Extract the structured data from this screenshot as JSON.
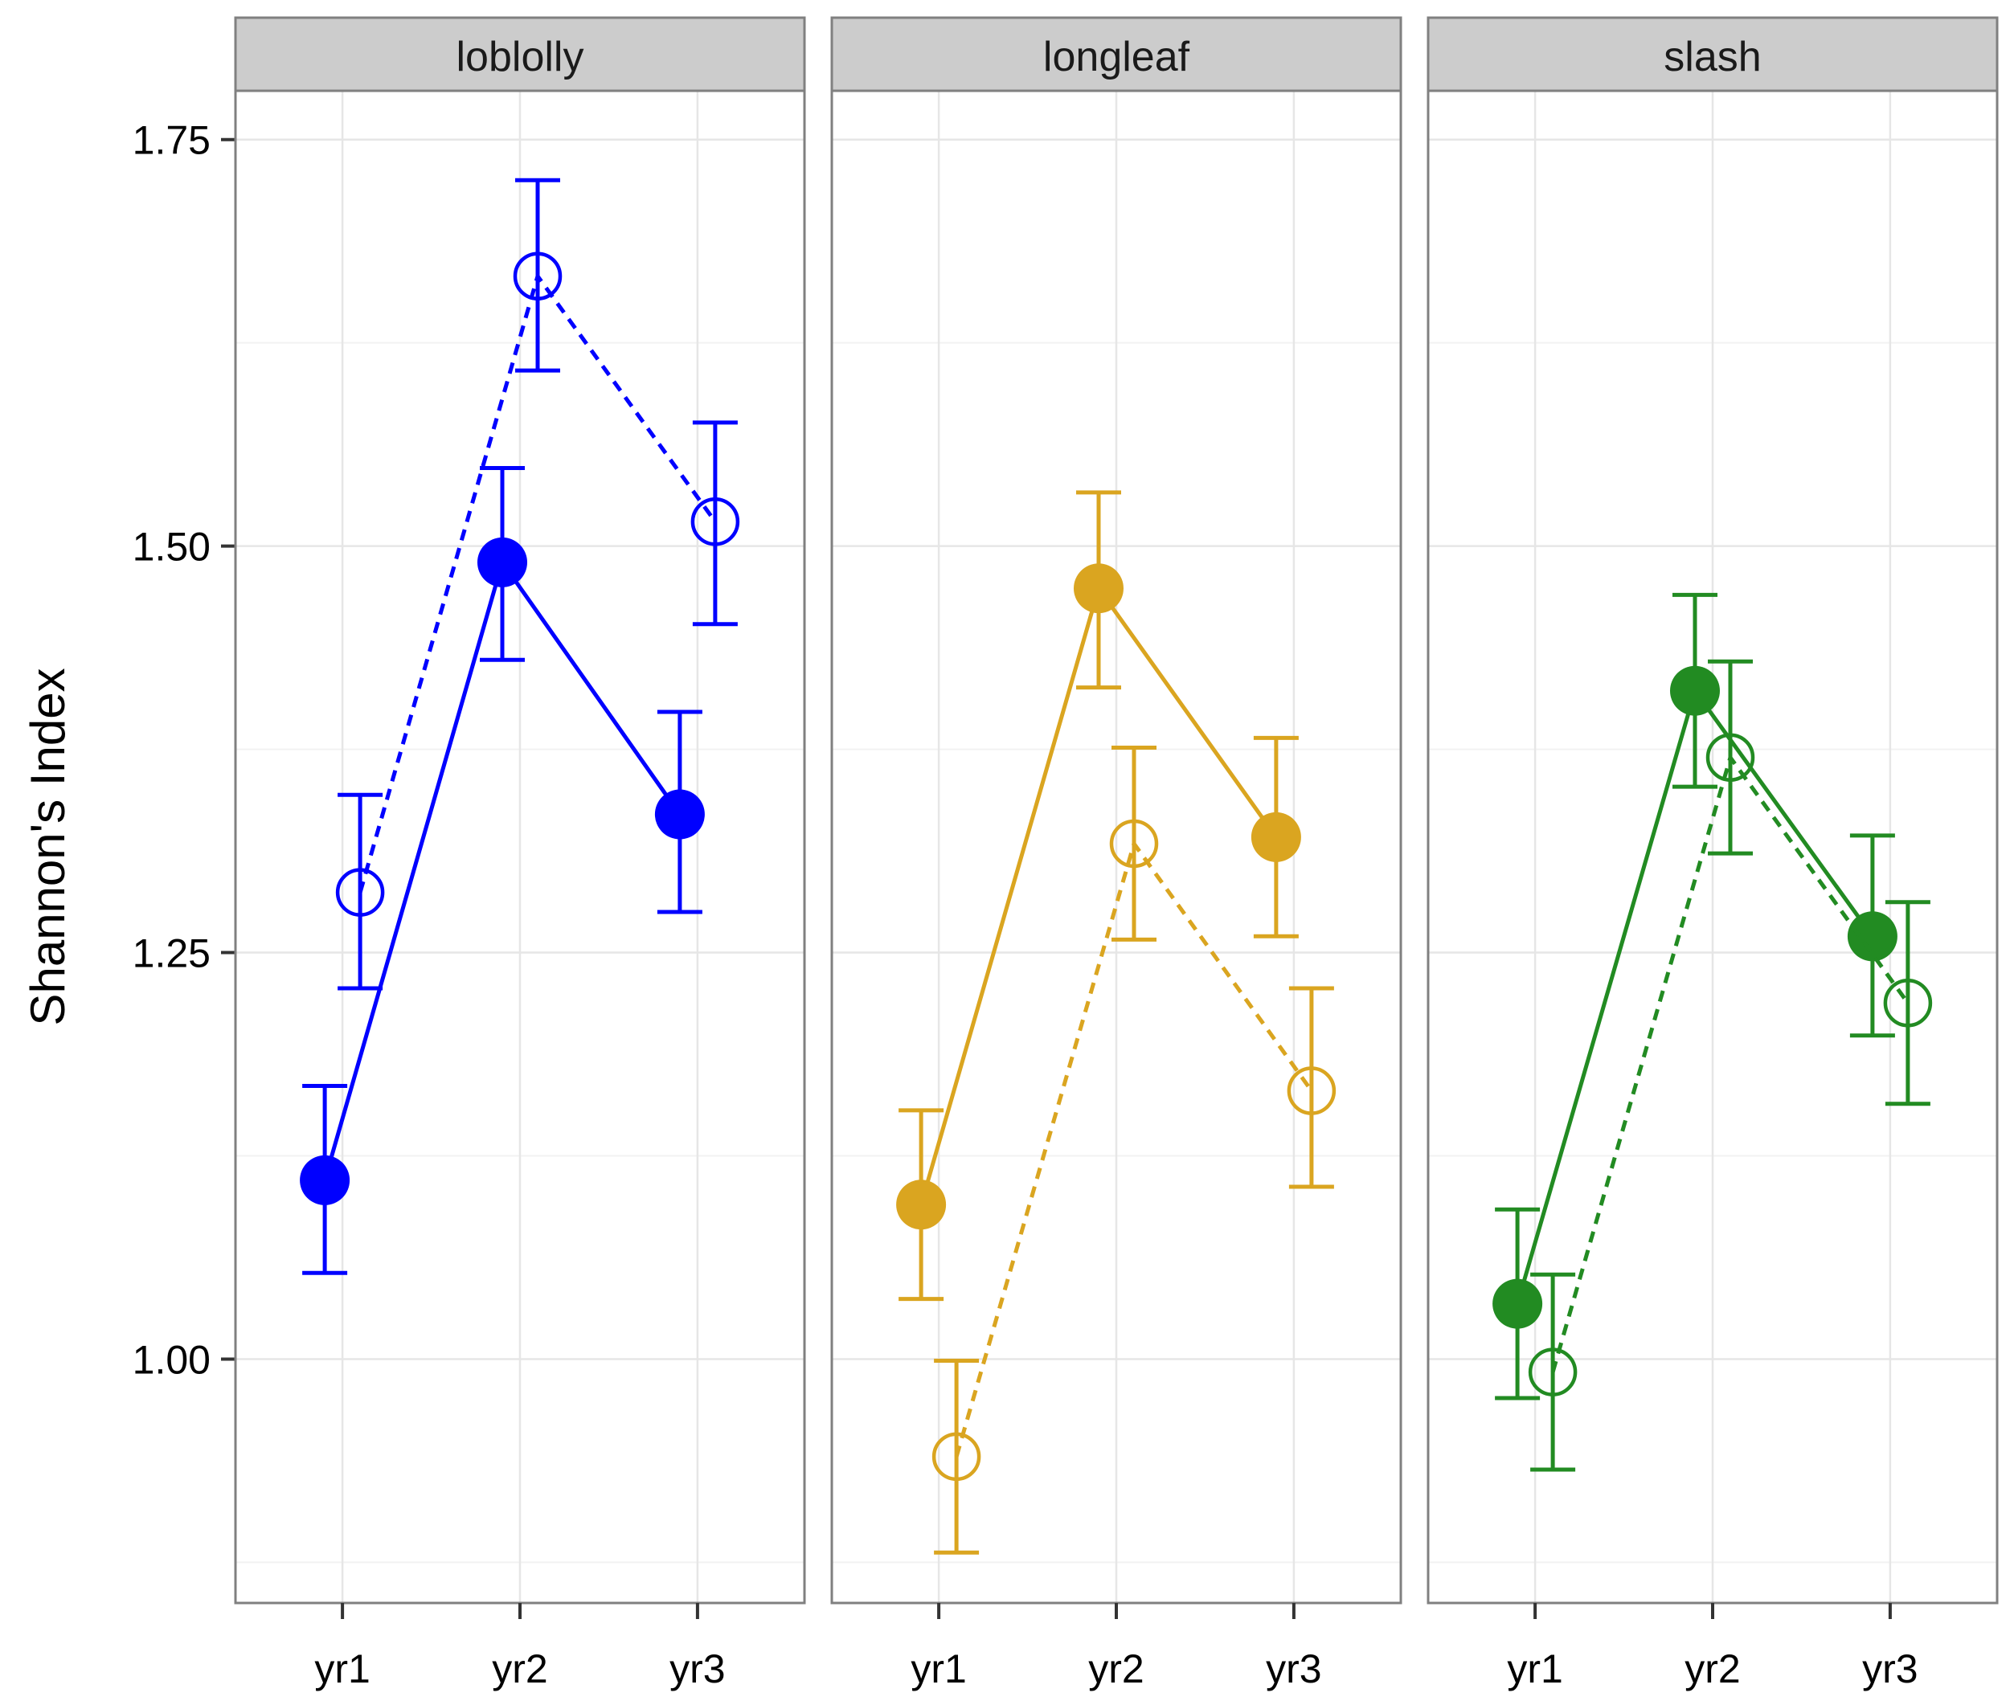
{
  "chart_data": {
    "type": "line",
    "ylabel": "Shannon's Index",
    "xlabel": "",
    "categories": [
      "yr1",
      "yr2",
      "yr3"
    ],
    "ylim": [
      0.85,
      1.78
    ],
    "yticks": [
      1.0,
      1.25,
      1.5,
      1.75
    ],
    "ytick_labels": [
      "1.00",
      "1.25",
      "1.50",
      "1.75"
    ],
    "grid": true,
    "facets": [
      {
        "label": "loblolly",
        "color": "#0000ff",
        "series": [
          {
            "name": "filled",
            "marker": "filled",
            "linestyle": "solid",
            "values": [
              1.11,
              1.49,
              1.335
            ],
            "lower": [
              1.053,
              1.43,
              1.275
            ],
            "upper": [
              1.168,
              1.548,
              1.398
            ]
          },
          {
            "name": "open",
            "marker": "open",
            "linestyle": "dashed",
            "values": [
              1.287,
              1.666,
              1.515
            ],
            "lower": [
              1.228,
              1.608,
              1.452
            ],
            "upper": [
              1.347,
              1.725,
              1.576
            ]
          }
        ]
      },
      {
        "label": "longleaf",
        "color": "#daa520",
        "series": [
          {
            "name": "filled",
            "marker": "filled",
            "linestyle": "solid",
            "values": [
              1.095,
              1.474,
              1.321
            ],
            "lower": [
              1.037,
              1.413,
              1.26
            ],
            "upper": [
              1.153,
              1.533,
              1.382
            ]
          },
          {
            "name": "open",
            "marker": "open",
            "linestyle": "dashed",
            "values": [
              0.94,
              1.317,
              1.165
            ],
            "lower": [
              0.881,
              1.258,
              1.106
            ],
            "upper": [
              0.999,
              1.376,
              1.228
            ]
          }
        ]
      },
      {
        "label": "slash",
        "color": "#228b22",
        "series": [
          {
            "name": "filled",
            "marker": "filled",
            "linestyle": "solid",
            "values": [
              1.034,
              1.411,
              1.26
            ],
            "lower": [
              0.976,
              1.352,
              1.199
            ],
            "upper": [
              1.092,
              1.47,
              1.322
            ]
          },
          {
            "name": "open",
            "marker": "open",
            "linestyle": "dashed",
            "values": [
              0.992,
              1.37,
              1.219
            ],
            "lower": [
              0.932,
              1.311,
              1.157
            ],
            "upper": [
              1.052,
              1.429,
              1.281
            ]
          }
        ]
      }
    ]
  }
}
